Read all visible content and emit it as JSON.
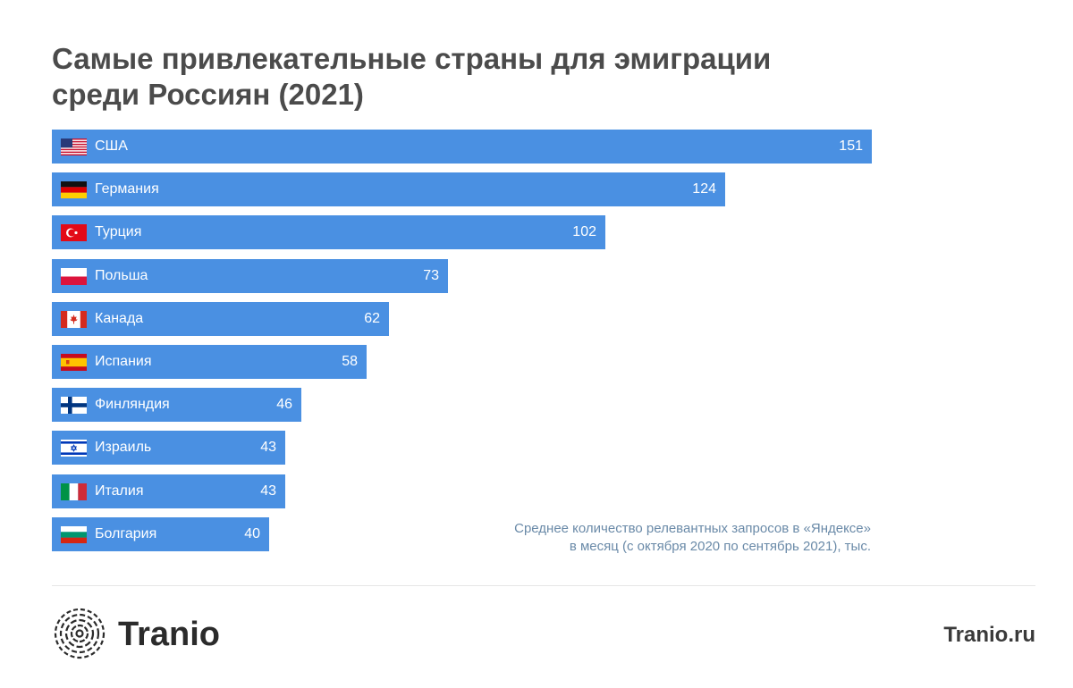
{
  "title_line1": "Самые привлекательные страны для эмиграции",
  "title_line2": "среди Россиян (2021)",
  "chart_data": {
    "type": "bar",
    "orientation": "horizontal",
    "categories": [
      "США",
      "Германия",
      "Турция",
      "Польша",
      "Канада",
      "Испания",
      "Финляндия",
      "Израиль",
      "Италия",
      "Болгария"
    ],
    "values": [
      151,
      124,
      102,
      73,
      62,
      58,
      46,
      43,
      43,
      40
    ],
    "flags": [
      "us-flag-icon",
      "de-flag-icon",
      "tr-flag-icon",
      "pl-flag-icon",
      "ca-flag-icon",
      "es-flag-icon",
      "fi-flag-icon",
      "il-flag-icon",
      "it-flag-icon",
      "bg-flag-icon"
    ],
    "bar_color": "#4a90e2",
    "grid": false
  },
  "note_line1": "Среднее количество релевантных запросов в «Яндексе»",
  "note_line2": "в месяц (с октября 2020 по сентябрь 2021), тыс.",
  "brand": "Tranio",
  "site": "Tranio.ru"
}
